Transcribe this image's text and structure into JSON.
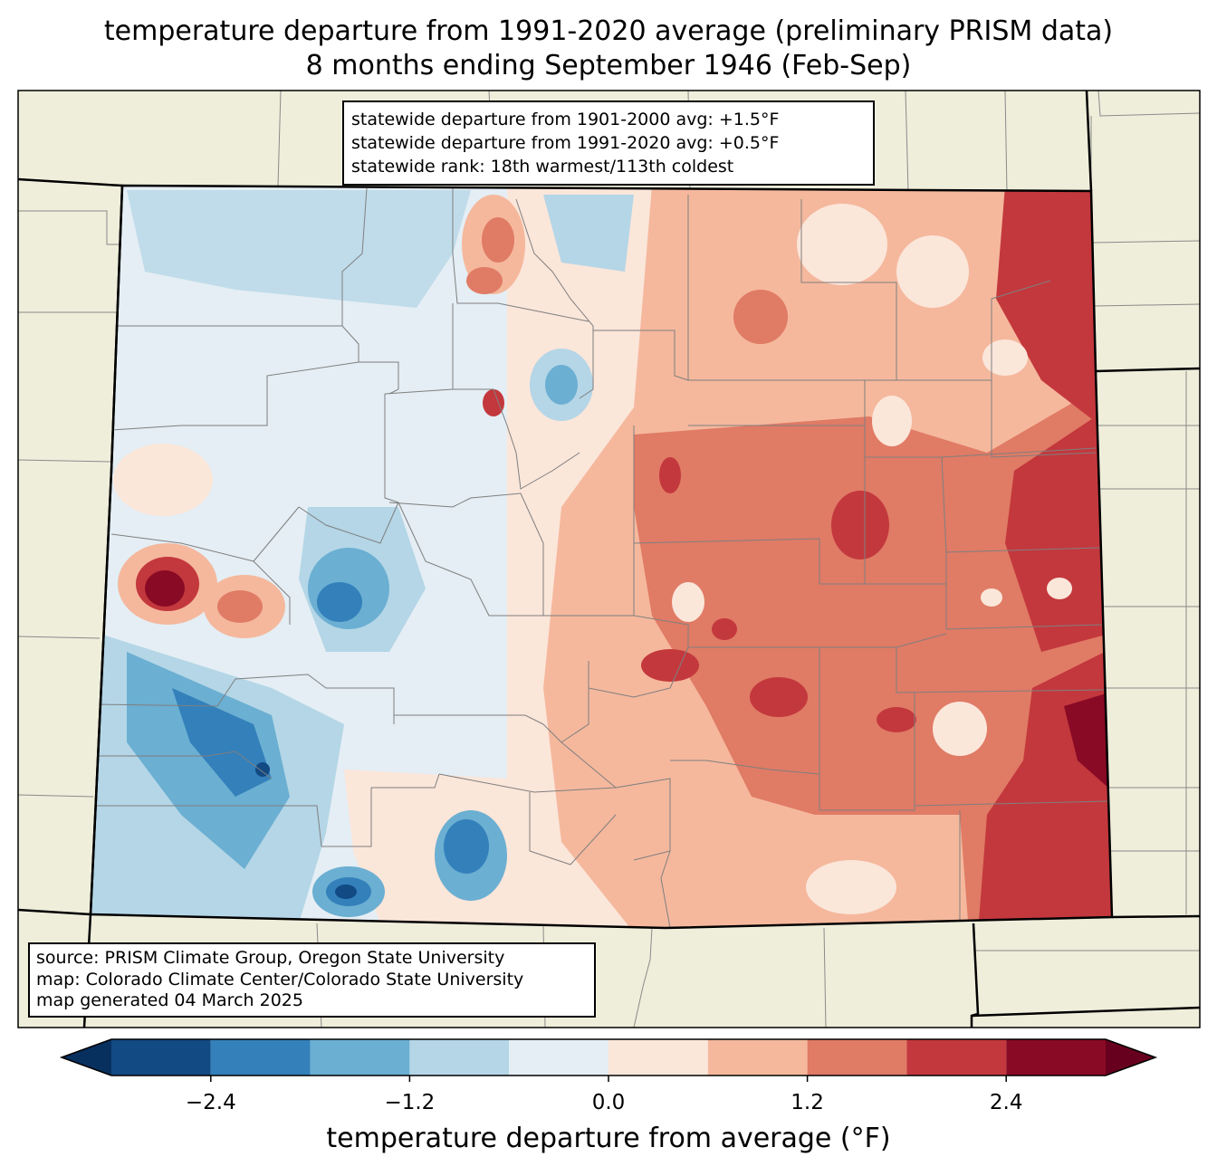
{
  "title": {
    "line1": "temperature departure from 1991-2020 average (preliminary PRISM data)",
    "line2": "8 months ending September 1946 (Feb-Sep)"
  },
  "stats": {
    "line1": "statewide departure from 1901-2000 avg: +1.5°F",
    "line2": "statewide departure from 1991-2020 avg: +0.5°F",
    "line3": "statewide rank: 18th warmest/113th coldest"
  },
  "source": {
    "line1": "source: PRISM Climate Group, Oregon State University",
    "line2": "map: Colorado Climate Center/Colorado State University",
    "line3": "map generated 04 March 2025"
  },
  "colorbar": {
    "label": "temperature departure from average (°F)",
    "ticks": [
      "−2.4",
      "−1.2",
      "0.0",
      "1.2",
      "2.4"
    ],
    "bins": [
      -3.0,
      -2.4,
      -1.8,
      -1.2,
      -0.6,
      0.0,
      0.6,
      1.2,
      1.8,
      2.4,
      3.0
    ],
    "colors": [
      "#124a84",
      "#3380bb",
      "#6bafd2",
      "#b4d6e7",
      "#e4eef4",
      "#fbe6da",
      "#f5b89d",
      "#e07b65",
      "#c3383d",
      "#890a25"
    ],
    "under_color": "#08305f",
    "over_color": "#67001f"
  },
  "map": {
    "land_color": "#efeedb",
    "state": "Colorado"
  }
}
